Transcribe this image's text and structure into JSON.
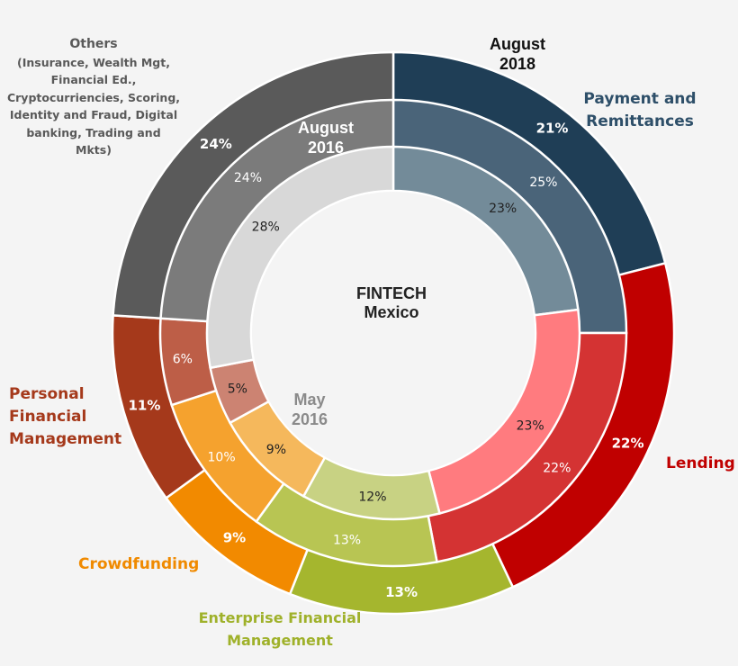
{
  "center": {
    "line1": "FINTECH",
    "line2": "Mexico"
  },
  "rings": {
    "outer": {
      "line1": "August",
      "line2": "2018"
    },
    "middle": {
      "line1": "August",
      "line2": "2016"
    },
    "inner": {
      "line1": "May",
      "line2": "2016"
    }
  },
  "categories": {
    "payment": {
      "line1": "Payment and",
      "line2": "Remittances"
    },
    "lending": {
      "line1": "Lending"
    },
    "enterprise": {
      "line1": "Enterprise Financial",
      "line2": "Management"
    },
    "crowdfunding": {
      "line1": "Crowdfunding"
    },
    "personal": {
      "line1": "Personal",
      "line2": "Financial",
      "line3": "Management"
    },
    "others": {
      "line1": "Others",
      "line2": "(Insurance, Wealth Mgt,",
      "line3": "Financial Ed.,",
      "line4": "Cryptocurriencies, Scoring,",
      "line5": "Identity and Fraud, Digital",
      "line6": "banking, Trading and",
      "line7": "Mkts)"
    }
  },
  "chart_data": {
    "type": "pie",
    "subtype": "nested-donut",
    "title": "FINTECH Mexico",
    "categories": [
      "Payment and Remittances",
      "Lending",
      "Enterprise Financial Management",
      "Crowdfunding",
      "Personal Financial Management",
      "Others"
    ],
    "series": [
      {
        "name": "August 2018",
        "ring": "outer",
        "values": [
          21,
          22,
          13,
          9,
          11,
          24
        ],
        "labels": [
          "21%",
          "22%",
          "13%",
          "9%",
          "11%",
          "24%"
        ],
        "label_color": "#ffffff",
        "label_bold": true,
        "colors": [
          "#1f3e56",
          "#c00000",
          "#a5b62e",
          "#f28a00",
          "#a5391b",
          "#5a5a5a"
        ]
      },
      {
        "name": "August 2016",
        "ring": "middle",
        "values": [
          25,
          22,
          13,
          10,
          6,
          24
        ],
        "labels": [
          "25%",
          "22%",
          "13%",
          "10%",
          "6%",
          "24%"
        ],
        "label_color": "#ffffff",
        "label_bold": false,
        "colors": [
          "#4a6479",
          "#d43333",
          "#b8c553",
          "#f5a22e",
          "#bd5e47",
          "#7b7b7b"
        ]
      },
      {
        "name": "May 2016",
        "ring": "inner",
        "values": [
          23,
          23,
          12,
          9,
          5,
          28
        ],
        "labels": [
          "23%",
          "23%",
          "12%",
          "9%",
          "5%",
          "28%"
        ],
        "label_color": "#222222",
        "label_bold": false,
        "colors": [
          "#738b99",
          "#ff7b7f",
          "#c8d283",
          "#f5b85c",
          "#cc8372",
          "#d8d8d8"
        ]
      }
    ],
    "label_colors": [
      "#1f3e56",
      "#c00000",
      "#a5b62e",
      "#f28a00",
      "#a5391b",
      "#5a5a5a"
    ],
    "ring_label_colors": {
      "outer": "#111111",
      "middle": "#ffffff",
      "inner": "#888888"
    }
  }
}
